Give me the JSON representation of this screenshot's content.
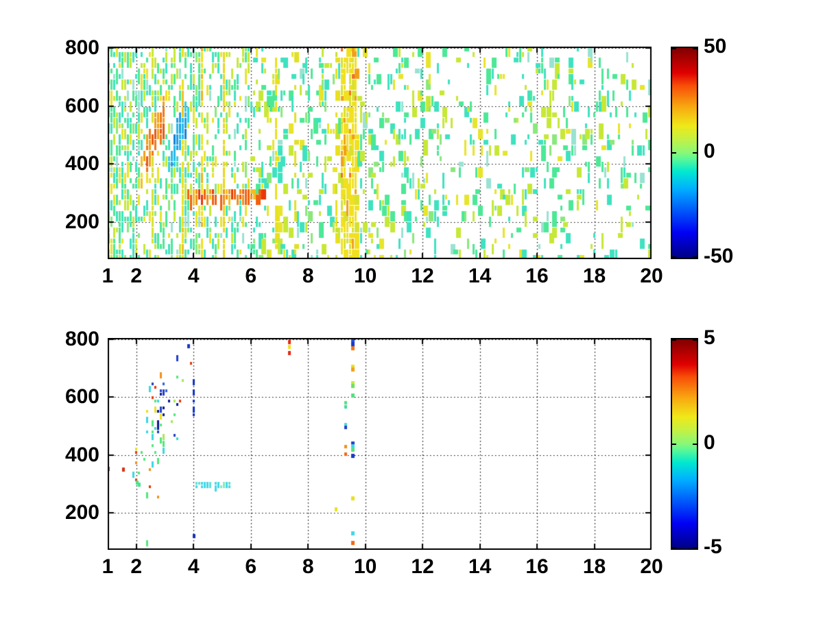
{
  "figure": {
    "background": "#FFFFFF",
    "axis_color": "#000000",
    "grid_style": "dotted-black",
    "colormap_name": "jet",
    "jet_stops": [
      [
        "#000085",
        0.0
      ],
      [
        "#0000F5",
        0.12
      ],
      [
        "#00B0FF",
        0.33
      ],
      [
        "#00E8D0",
        0.41
      ],
      [
        "#58F898",
        0.47
      ],
      [
        "#88F878",
        0.5
      ],
      [
        "#C8F040",
        0.57
      ],
      [
        "#F0E818",
        0.63
      ],
      [
        "#F8A810",
        0.72
      ],
      [
        "#F84E08",
        0.82
      ],
      [
        "#E00000",
        0.88
      ],
      [
        "#800000",
        1.0
      ]
    ]
  },
  "chart_data": [
    {
      "type": "heatmap",
      "title": "",
      "xlabel": "",
      "ylabel": "",
      "seed": 20123,
      "x_range": [
        1,
        20
      ],
      "y_range": [
        72,
        805
      ],
      "x_tick_values": [
        1,
        2,
        4,
        6,
        8,
        10,
        12,
        14,
        16,
        18,
        20
      ],
      "x_tick_labels": [
        "1",
        "2",
        "4",
        "6",
        "8",
        "10",
        "12",
        "14",
        "16",
        "18",
        "20"
      ],
      "y_tick_values": [
        200,
        400,
        600,
        800
      ],
      "y_tick_labels": [
        "200",
        "400",
        "600",
        "800"
      ],
      "grid_x_values": [
        2,
        4,
        6,
        8,
        10,
        12,
        14,
        16,
        18,
        20
      ],
      "grid_y_values": [
        200,
        400,
        600,
        800
      ],
      "colorbar": {
        "min": -50,
        "max": 50,
        "tick_values": [
          50,
          0,
          -50
        ],
        "tick_labels": [
          "50",
          "0",
          "-50"
        ]
      },
      "cell": {
        "w": 4,
        "h": 8
      },
      "run_p": [
        0.45,
        0.2
      ],
      "wide": {
        "from": 6,
        "p": 0.45
      },
      "base_palette": [
        [
          "#3EE2C0",
          0.28
        ],
        [
          "#4CE896",
          0.24
        ],
        [
          "#8AE87C",
          0.08
        ],
        [
          "#C6E836",
          0.22
        ],
        [
          "#E8E42A",
          0.12
        ],
        [
          "#9AE2D2",
          0.06
        ]
      ],
      "bands": [
        {
          "x0": 1.0,
          "x1": 1.12,
          "d": 0.65
        },
        {
          "x0": 1.12,
          "x1": 2.0,
          "d": 0.5
        },
        {
          "x0": 2.0,
          "x1": 4.3,
          "d": 0.42
        },
        {
          "x0": 4.3,
          "x1": 6.0,
          "d": 0.3
        },
        {
          "x0": 6.0,
          "x1": 8.0,
          "d": 0.18
        },
        {
          "x0": 8.0,
          "x1": 12.0,
          "d": 0.15
        },
        {
          "x0": 12.0,
          "x1": 16.0,
          "d": 0.12
        },
        {
          "x0": 16.0,
          "x1": 20.0,
          "d": 0.11
        }
      ],
      "features": [
        {
          "type": "blob",
          "xc": 2.65,
          "sx": 0.6,
          "yc": 500,
          "slope": 240,
          "sy": 105,
          "x0": 1.7,
          "x1": 3.6,
          "p": 0.95,
          "core": [
            [
              "#F0A018",
              0.5
            ],
            [
              "#F07818",
              0.3
            ],
            [
              "#E85810",
              0.2
            ]
          ],
          "mid": [
            [
              "#F0E020",
              0.7
            ],
            [
              "#F0C020",
              0.3
            ]
          ],
          "colors": [
            [
              "#E8E42A",
              0.6
            ],
            [
              "#C6E836",
              0.4
            ]
          ]
        },
        {
          "type": "blob",
          "xc": 3.5,
          "sx": 0.42,
          "yc": 500,
          "slope": 240,
          "sy": 90,
          "x0": 2.8,
          "x1": 4.2,
          "p": 0.92,
          "core": [
            [
              "#18A0E8",
              0.45
            ],
            [
              "#28B8E8",
              0.35
            ],
            [
              "#1080D8",
              0.2
            ]
          ],
          "mid": [
            [
              "#30D0E0",
              1
            ]
          ],
          "colors": [
            [
              "#50E0CC",
              1
            ]
          ]
        },
        {
          "type": "rect",
          "x0": 3.72,
          "x1": 6.45,
          "y0": 276,
          "y1": 305,
          "p": 0.85,
          "colors": [
            [
              "#F06010",
              0.35
            ],
            [
              "#E83808",
              0.2
            ],
            [
              "#F09018",
              0.3
            ],
            [
              "#F0C020",
              0.15
            ]
          ]
        },
        {
          "type": "vline",
          "x": 2.56,
          "p": 0.7,
          "colors": [
            [
              "#D8E030",
              0.8
            ],
            [
              "#C6E836",
              0.2
            ]
          ]
        },
        {
          "type": "vline",
          "x": 3.64,
          "p": 0.68,
          "colors": [
            [
              "#E8E020",
              0.85
            ],
            [
              "#F0C020",
              0.15
            ]
          ]
        },
        {
          "type": "vline",
          "x": 4.32,
          "p": 0.8,
          "colors": [
            [
              "#F0E020",
              0.8
            ],
            [
              "#F0B018",
              0.2
            ]
          ]
        },
        {
          "type": "vline",
          "x": 5.06,
          "p": 0.75,
          "colors": [
            [
              "#E8D820",
              0.9
            ],
            [
              "#F0A018",
              0.1
            ]
          ]
        },
        {
          "type": "vline",
          "x": 6.88,
          "p": 0.5,
          "colors": [
            [
              "#E8E020",
              1
            ]
          ]
        },
        {
          "type": "vline",
          "x": 7.52,
          "p": 0.45,
          "colors": [
            [
              "#E0E028",
              1
            ]
          ]
        },
        {
          "type": "vband",
          "x0": 8.98,
          "x1": 9.08,
          "p": 0.5,
          "colors": [
            [
              "#E8E020",
              0.8
            ],
            [
              "#C8E030",
              0.2
            ]
          ]
        },
        {
          "type": "vband",
          "x0": 9.18,
          "x1": 9.74,
          "p": 0.82,
          "colors": [
            [
              "#F0E020",
              0.6
            ],
            [
              "#D8E030",
              0.18
            ],
            [
              "#F0A018",
              0.14
            ],
            [
              "#F07018",
              0.08
            ]
          ]
        }
      ],
      "marks": []
    },
    {
      "type": "heatmap",
      "title": "",
      "xlabel": "",
      "ylabel": "",
      "seed": 4242,
      "x_range": [
        1,
        20
      ],
      "y_range": [
        72,
        805
      ],
      "x_tick_values": [
        1,
        2,
        4,
        6,
        8,
        10,
        12,
        14,
        16,
        18,
        20
      ],
      "x_tick_labels": [
        "1",
        "2",
        "4",
        "6",
        "8",
        "10",
        "12",
        "14",
        "16",
        "18",
        "20"
      ],
      "y_tick_values": [
        200,
        400,
        600,
        800
      ],
      "y_tick_labels": [
        "200",
        "400",
        "600",
        "800"
      ],
      "grid_x_values": [
        2,
        4,
        6,
        8,
        10,
        12,
        14,
        16,
        18,
        20
      ],
      "grid_y_values": [
        200,
        400,
        600,
        800
      ],
      "colorbar": {
        "min": -5,
        "max": 5,
        "tick_values": [
          5,
          0,
          -5
        ],
        "tick_labels": [
          "5",
          "0",
          "-5"
        ]
      },
      "cell": {
        "w": 4,
        "h": 5
      },
      "run_p": [
        0.3,
        0.12
      ],
      "wide": null,
      "base_palette": null,
      "bands": [],
      "features": [
        {
          "type": "blob",
          "xc": 2.7,
          "sx": 0.72,
          "yc": 470,
          "slope": 210,
          "sy": 150,
          "x0": 1.85,
          "x1": 3.95,
          "p": 0.2,
          "colors": [
            [
              "#50E87A",
              0.34
            ],
            [
              "#38D8E0",
              0.2
            ],
            [
              "#A8E858",
              0.12
            ],
            [
              "#E8E020",
              0.1
            ],
            [
              "#F09018",
              0.07
            ],
            [
              "#E83808",
              0.05
            ],
            [
              "#2040C8",
              0.07
            ],
            [
              "#101890",
              0.05
            ]
          ]
        },
        {
          "type": "blob",
          "xc": 2.85,
          "sx": 0.38,
          "yc": 575,
          "slope": 0,
          "sy": 70,
          "x0": 2.3,
          "x1": 3.6,
          "p": 0.3,
          "colors": [
            [
              "#101890",
              0.3
            ],
            [
              "#2040C8",
              0.25
            ],
            [
              "#3060E0",
              0.15
            ],
            [
              "#38D8E0",
              0.12
            ],
            [
              "#50E87A",
              0.08
            ],
            [
              "#E83808",
              0.06
            ],
            [
              "#E8E020",
              0.04
            ]
          ]
        },
        {
          "type": "rect",
          "x0": 3.94,
          "x1": 4.08,
          "y0": 530,
          "y1": 665,
          "p": 0.5,
          "colors": [
            [
              "#1030C0",
              0.75
            ],
            [
              "#2848D0",
              0.2
            ],
            [
              "#E8E020",
              0.05
            ]
          ]
        },
        {
          "type": "rect",
          "x0": 4.05,
          "x1": 5.3,
          "y0": 280,
          "y1": 306,
          "p": 0.72,
          "colors": [
            [
              "#40D8E8",
              0.7
            ],
            [
              "#60E0D8",
              0.2
            ],
            [
              "#88E8C0",
              0.1
            ]
          ]
        }
      ],
      "marks": [
        {
          "type": "dotcol",
          "x": 9.56,
          "w": 5,
          "h": 6,
          "dots": [
            [
              795,
              "#2050E0"
            ],
            [
              783,
              "#1838C8"
            ],
            [
              770,
              "#F07818"
            ],
            [
              705,
              "#E8E020"
            ],
            [
              695,
              "#F0A018"
            ],
            [
              648,
              "#C8E838"
            ],
            [
              640,
              "#70E060"
            ],
            [
              605,
              "#50E080"
            ],
            [
              440,
              "#2040C8"
            ],
            [
              430,
              "#40D8E0"
            ],
            [
              418,
              "#58E080"
            ],
            [
              398,
              "#1838C8"
            ],
            [
              250,
              "#E8E020"
            ],
            [
              130,
              "#40D8E8"
            ],
            [
              95,
              "#F06818"
            ]
          ]
        },
        {
          "type": "dotcol",
          "x": 9.31,
          "w": 4,
          "h": 5,
          "dots": [
            [
              581,
              "#58E080"
            ],
            [
              568,
              "#48D8A0"
            ],
            [
              505,
              "#40D8E0"
            ],
            [
              496,
              "#2040C8"
            ],
            [
              430,
              "#F09018"
            ],
            [
              403,
              "#F06818"
            ]
          ]
        },
        {
          "type": "dotcol",
          "x": 7.36,
          "w": 4,
          "h": 6,
          "dots": [
            [
              790,
              "#E82810"
            ],
            [
              773,
              "#F0E020"
            ],
            [
              752,
              "#E82810"
            ]
          ]
        },
        {
          "type": "dots",
          "dots": [
            [
              3.83,
              776,
              "#1838C8"
            ],
            [
              4.02,
              120,
              "#1830B0"
            ],
            [
              8.98,
              213,
              "#E8E020"
            ],
            [
              1.02,
              352,
              "#E82810"
            ],
            [
              1.55,
              350,
              "#D83010"
            ],
            [
              2.02,
              305,
              "#48E08A"
            ],
            [
              2.1,
              298,
              "#48E08A"
            ]
          ]
        }
      ]
    }
  ]
}
